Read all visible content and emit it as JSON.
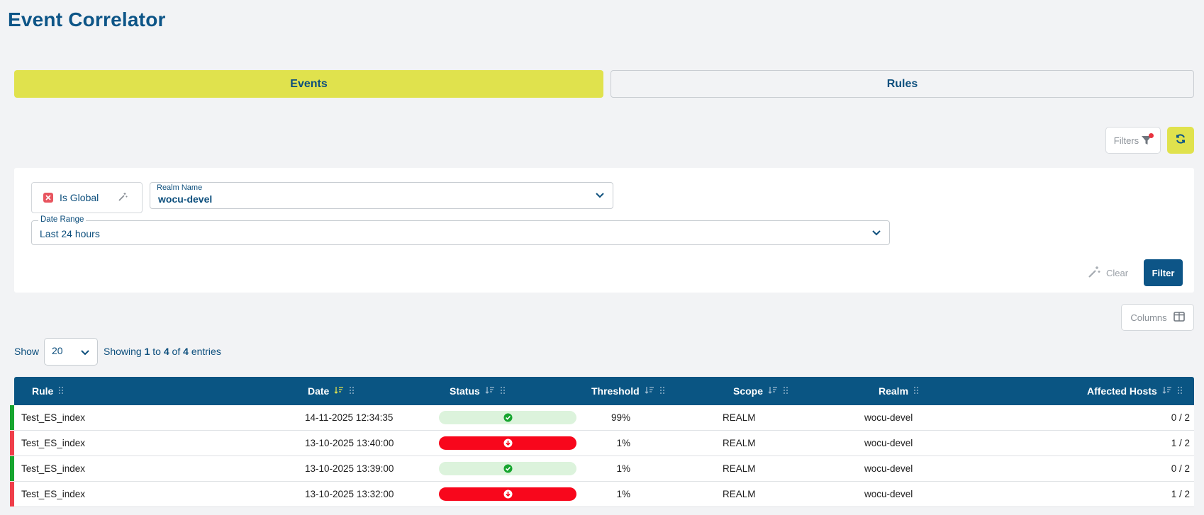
{
  "page": {
    "title": "Event Correlator"
  },
  "tabs": [
    {
      "label": "Events",
      "active": true
    },
    {
      "label": "Rules",
      "active": false
    }
  ],
  "toolbar": {
    "filters_label": "Filters",
    "refresh_icon": "refresh-icon"
  },
  "filters": {
    "chip_label": "Is Global",
    "realm": {
      "label": "Realm Name",
      "value": "wocu-devel"
    },
    "date_range": {
      "label": "Date Range",
      "value": "Last 24 hours"
    },
    "clear_label": "Clear",
    "filter_label": "Filter"
  },
  "columns_label": "Columns",
  "pagination": {
    "show_label": "Show",
    "page_size": "20",
    "info_prefix": "Showing",
    "from": "1",
    "to_word": "to",
    "to": "4",
    "of_word": "of",
    "total": "4",
    "suffix": "entries"
  },
  "table": {
    "headers": [
      "Rule",
      "Date",
      "Status",
      "Threshold",
      "Scope",
      "Realm",
      "Affected Hosts"
    ],
    "rows": [
      {
        "rule": "Test_ES_index",
        "date": "14-11-2025 12:34:35",
        "status": "ok",
        "threshold": "99%",
        "scope": "REALM",
        "realm": "wocu-devel",
        "affected": "0 / 2"
      },
      {
        "rule": "Test_ES_index",
        "date": "13-10-2025 13:40:00",
        "status": "down",
        "threshold": "1%",
        "scope": "REALM",
        "realm": "wocu-devel",
        "affected": "1 / 2"
      },
      {
        "rule": "Test_ES_index",
        "date": "13-10-2025 13:39:00",
        "status": "ok",
        "threshold": "1%",
        "scope": "REALM",
        "realm": "wocu-devel",
        "affected": "0 / 2"
      },
      {
        "rule": "Test_ES_index",
        "date": "13-10-2025 13:32:00",
        "status": "down",
        "threshold": "1%",
        "scope": "REALM",
        "realm": "wocu-devel",
        "affected": "1 / 2"
      }
    ]
  },
  "colors": {
    "brand_blue": "#0d5587",
    "accent_yellow": "#e0e24d",
    "ok_bar": "#17a52f",
    "ok_pill": "#dcf3dc",
    "down_bar": "#ef3e4a",
    "down_pill": "#f8071c"
  }
}
